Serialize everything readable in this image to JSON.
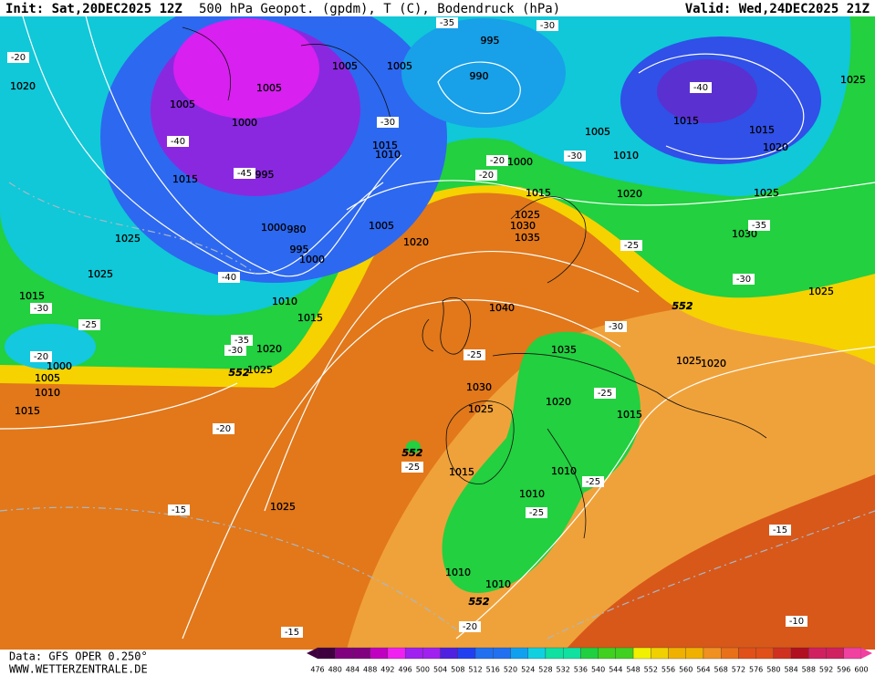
{
  "header": {
    "init": "Init: Sat,20DEC2025 12Z",
    "title": "500 hPa Geopot. (gpdm), T (C), Bodendruck (hPa)",
    "valid": "Valid: Wed,24DEC2025 21Z"
  },
  "footer": {
    "data_source": "Data: GFS OPER 0.250°",
    "website": "WWW.WETTERZENTRALE.DE"
  },
  "colorbar": {
    "labels": [
      476,
      480,
      484,
      488,
      492,
      496,
      500,
      504,
      508,
      512,
      516,
      520,
      524,
      528,
      532,
      536,
      540,
      544,
      548,
      552,
      556,
      560,
      564,
      568,
      572,
      576,
      580,
      584,
      588,
      592,
      596,
      600
    ]
  },
  "map_labels": {
    "isobars": [
      "1020",
      "1005",
      "1005",
      "1005",
      "1005",
      "995",
      "990",
      "1000",
      "1015",
      "995",
      "1015",
      "1010",
      "1000",
      "1005",
      "1010",
      "1015",
      "1015",
      "1020",
      "1025",
      "1020",
      "1025",
      "1030",
      "1025",
      "1025",
      "1025",
      "1015",
      "1000",
      "980",
      "995",
      "1000",
      "1005",
      "1020",
      "1015",
      "1025",
      "1030",
      "1035",
      "1040",
      "1010",
      "1015",
      "1020",
      "1025",
      "1000",
      "1005",
      "1010",
      "1015",
      "1035",
      "1030",
      "1025",
      "1020",
      "1015",
      "1025",
      "1020",
      "1015",
      "1010",
      "1010",
      "1025",
      "1010",
      "1010"
    ],
    "heights": [
      "552",
      "552",
      "552",
      "552"
    ],
    "temperatures": [
      "-20",
      "-35",
      "-30",
      "-40",
      "-40",
      "-45",
      "-30",
      "-20",
      "-20",
      "-30",
      "-35",
      "-25",
      "-30",
      "-40",
      "-30",
      "-25",
      "-35",
      "-30",
      "-20",
      "-25",
      "-30",
      "-25",
      "-20",
      "-25",
      "-25",
      "-25",
      "-15",
      "-15",
      "-10",
      "-15",
      "-20"
    ]
  }
}
